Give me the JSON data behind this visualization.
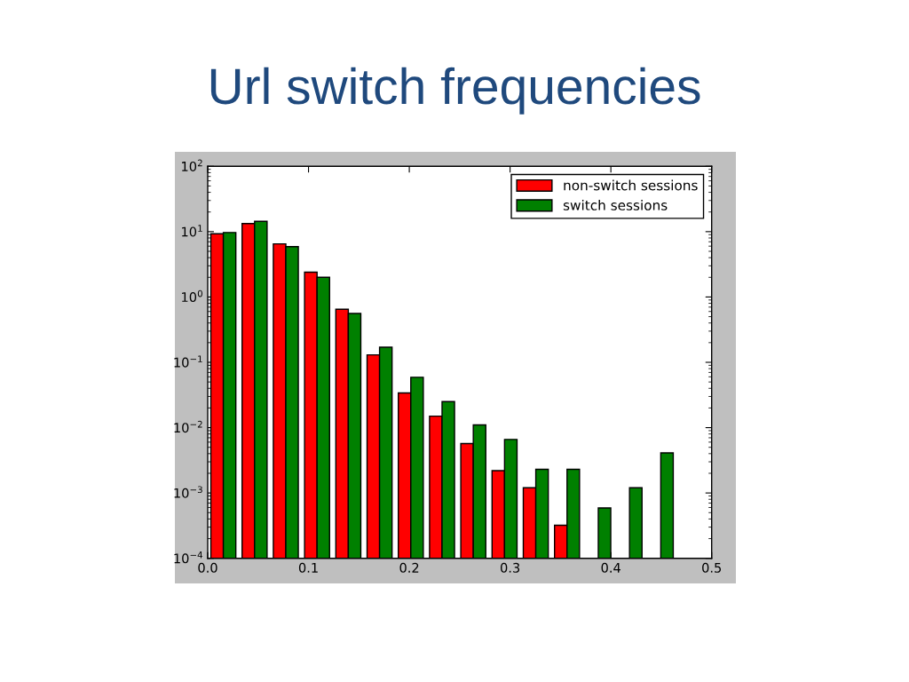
{
  "chart_data": {
    "type": "histogram",
    "title": "Url switch frequencies",
    "bins": [
      0,
      0.031,
      0.062,
      0.093,
      0.124,
      0.155,
      0.186,
      0.217,
      0.248,
      0.279,
      0.31,
      0.341,
      0.372,
      0.403,
      0.434,
      0.465
    ],
    "series": [
      {
        "name": "non-switch sessions",
        "color": "#ff0000",
        "values": [
          9.3,
          13.3,
          6.5,
          2.4,
          0.65,
          0.13,
          0.034,
          0.015,
          0.0057,
          0.0022,
          0.0012,
          0.00032,
          null,
          null,
          null
        ]
      },
      {
        "name": "switch sessions",
        "color": "#008000",
        "values": [
          9.7,
          14.4,
          5.9,
          2.0,
          0.56,
          0.17,
          0.059,
          0.025,
          0.011,
          0.0066,
          0.0023,
          0.0023,
          0.00059,
          0.0012,
          0.0041
        ]
      }
    ],
    "log": "y",
    "xlim": [
      0,
      0.5
    ],
    "xticks": [
      {
        "value": 0,
        "label": "0.0"
      },
      0.1,
      0.2,
      0.3,
      0.4,
      0.5
    ],
    "ylim": [
      0.0001,
      100
    ],
    "yticks": [
      {
        "value": 0.0001,
        "label": "10$^{−4}$"
      },
      {
        "value": 0.001,
        "label": "10$^{−3}$"
      },
      {
        "value": 0.01,
        "label": "10$^{−2}$"
      },
      {
        "value": 0.1,
        "label": "10$^{−1}$"
      },
      {
        "value": 1,
        "label": "10$^{0}$"
      },
      {
        "value": 10,
        "label": "10$^{1}$"
      },
      {
        "value": 100,
        "label": "10$^{2}$"
      }
    ],
    "legend": "top right"
  }
}
